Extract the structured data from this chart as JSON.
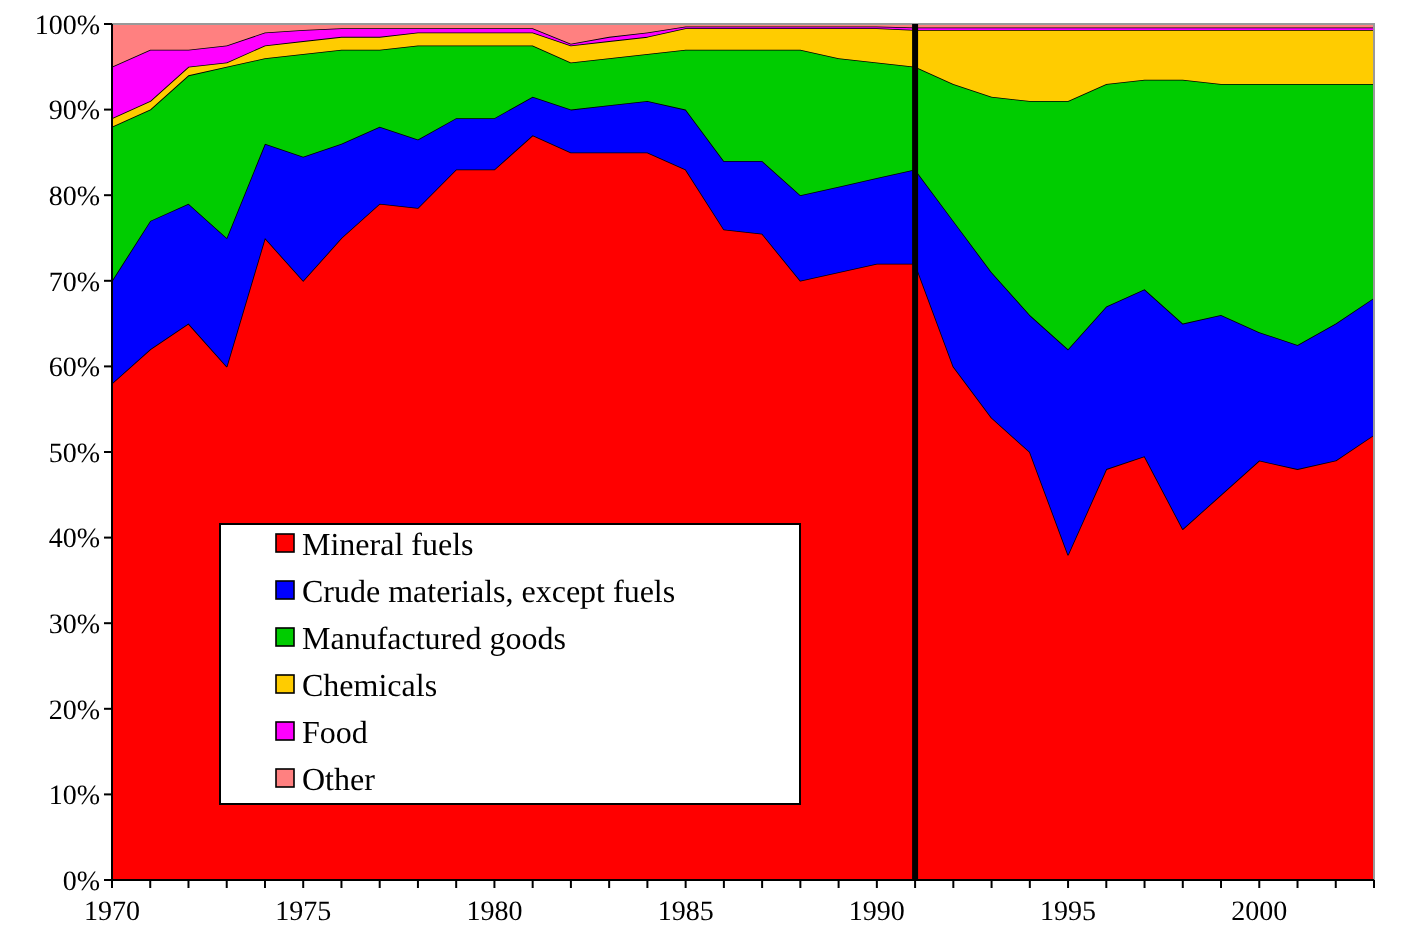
{
  "chart_data": {
    "type": "area",
    "stacked": true,
    "x": [
      1970,
      1971,
      1972,
      1973,
      1974,
      1975,
      1976,
      1977,
      1978,
      1979,
      1980,
      1981,
      1982,
      1983,
      1984,
      1985,
      1986,
      1987,
      1988,
      1989,
      1990,
      1991,
      1992,
      1993,
      1994,
      1995,
      1996,
      1997,
      1998,
      1999,
      2000,
      2001,
      2002,
      2003
    ],
    "series": [
      {
        "name": "Mineral fuels",
        "color": "#ff0000",
        "values": [
          58,
          62,
          65,
          60,
          75,
          70,
          75,
          79,
          78.5,
          83,
          83,
          87,
          85,
          85,
          85,
          83,
          76,
          75.5,
          70,
          71,
          72,
          72,
          60,
          54,
          50,
          38,
          48,
          49.5,
          41,
          45,
          49,
          48,
          49,
          52
        ]
      },
      {
        "name": "Crude materials, except fuels",
        "color": "#0000ff",
        "values": [
          12,
          15,
          14,
          15,
          11,
          14.5,
          11,
          9,
          8,
          6,
          6,
          4.5,
          5,
          5.5,
          6,
          7,
          8,
          8.5,
          10,
          10,
          10,
          11,
          17,
          17,
          16,
          24,
          19,
          19.5,
          24,
          21,
          15,
          14.5,
          16,
          16
        ]
      },
      {
        "name": "Manufactured goods",
        "color": "#00cc00",
        "values": [
          18,
          13,
          15,
          20,
          10,
          12,
          11,
          9,
          11,
          8.5,
          8.5,
          6,
          5.5,
          5.5,
          5.5,
          7,
          13,
          13,
          17,
          15,
          13.5,
          12,
          16,
          20.5,
          25,
          29,
          26,
          24.5,
          28.5,
          27,
          29,
          30.5,
          28,
          25
        ]
      },
      {
        "name": "Chemicals",
        "color": "#ffcc00",
        "values": [
          1,
          1,
          1,
          0.5,
          1.5,
          1.5,
          1.5,
          1.5,
          1.5,
          1.5,
          1.5,
          1.5,
          2,
          2,
          2,
          2.5,
          2.5,
          2.5,
          2.5,
          3.5,
          4,
          4.3,
          6.3,
          7.8,
          8.3,
          8.3,
          6.3,
          5.8,
          5.8,
          6.3,
          6.3,
          6.3,
          6.3,
          6.3
        ]
      },
      {
        "name": "Food",
        "color": "#ff00ff",
        "values": [
          6,
          6,
          2,
          2,
          1.5,
          1.3,
          1,
          1,
          0.5,
          0.5,
          0.5,
          0.5,
          0.2,
          0.5,
          0.5,
          0.2,
          0.2,
          0.2,
          0.2,
          0.2,
          0.2,
          0.3,
          0.3,
          0.3,
          0.3,
          0.3,
          0.3,
          0.3,
          0.3,
          0.3,
          0.3,
          0.3,
          0.3,
          0.3
        ]
      },
      {
        "name": "Other",
        "color": "#ff8080",
        "values": [
          5,
          3,
          3,
          2.5,
          1,
          0.7,
          0.5,
          0.5,
          0.5,
          0.5,
          0.5,
          0.5,
          2.3,
          1.5,
          1,
          0.3,
          0.3,
          0.3,
          0.3,
          0.3,
          0.3,
          0.4,
          0.4,
          0.4,
          0.4,
          0.4,
          0.4,
          0.4,
          0.4,
          0.4,
          0.4,
          0.4,
          0.4,
          0.4
        ]
      }
    ],
    "xlim": [
      1970,
      2003
    ],
    "xticks": [
      1970,
      {
        "value": 1971,
        "label": null
      },
      {
        "value": 1972,
        "label": null
      },
      {
        "value": 1973,
        "label": null
      },
      {
        "value": 1974,
        "label": null
      },
      1975,
      {
        "value": 1976,
        "label": null
      },
      {
        "value": 1977,
        "label": null
      },
      {
        "value": 1978,
        "label": null
      },
      {
        "value": 1979,
        "label": null
      },
      1980,
      {
        "value": 1981,
        "label": null
      },
      {
        "value": 1982,
        "label": null
      },
      {
        "value": 1983,
        "label": null
      },
      {
        "value": 1984,
        "label": null
      },
      1985,
      {
        "value": 1986,
        "label": null
      },
      {
        "value": 1987,
        "label": null
      },
      {
        "value": 1988,
        "label": null
      },
      {
        "value": 1989,
        "label": null
      },
      1990,
      {
        "value": 1991,
        "label": null
      },
      {
        "value": 1992,
        "label": null
      },
      {
        "value": 1993,
        "label": null
      },
      {
        "value": 1994,
        "label": null
      },
      1995,
      {
        "value": 1996,
        "label": null
      },
      {
        "value": 1997,
        "label": null
      },
      {
        "value": 1998,
        "label": null
      },
      {
        "value": 1999,
        "label": null
      },
      2000,
      {
        "value": 2001,
        "label": null
      },
      {
        "value": 2002,
        "label": null
      },
      {
        "value": 2003,
        "label": null
      }
    ],
    "ylim": [
      0,
      100
    ],
    "yticks": [
      {
        "value": 0,
        "label": "0%"
      },
      {
        "value": 10,
        "label": "10%"
      },
      {
        "value": 20,
        "label": "20%"
      },
      {
        "value": 30,
        "label": "30%"
      },
      {
        "value": 40,
        "label": "40%"
      },
      {
        "value": 50,
        "label": "50%"
      },
      {
        "value": 60,
        "label": "60%"
      },
      {
        "value": 70,
        "label": "70%"
      },
      {
        "value": 80,
        "label": "80%"
      },
      {
        "value": 90,
        "label": "90%"
      },
      {
        "value": 100,
        "label": "100%"
      }
    ],
    "ref_lines": [
      {
        "axis": "x",
        "value": 1991,
        "color": "#000000"
      }
    ],
    "legend": "bottom left"
  }
}
